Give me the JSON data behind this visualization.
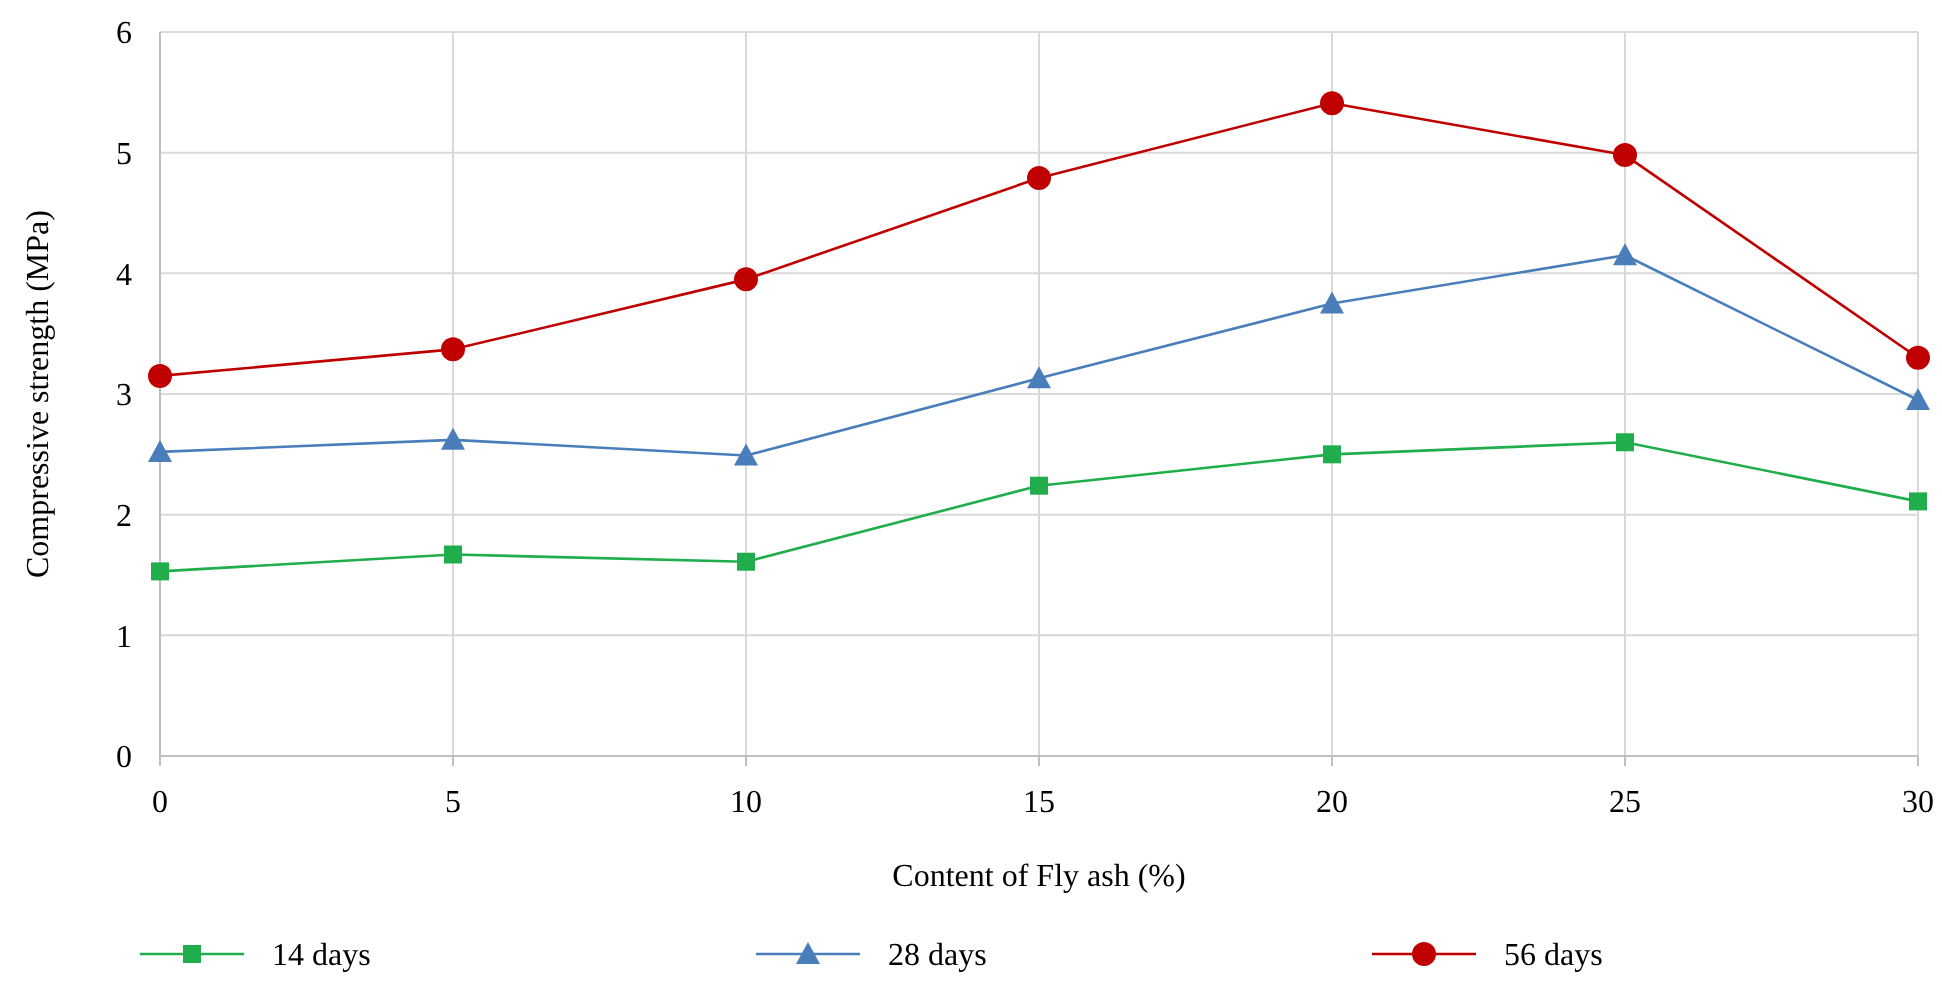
{
  "chart_data": {
    "type": "line",
    "xlabel": "Content of Fly ash (%)",
    "ylabel": "Compressive strength (MPa)",
    "x": [
      0,
      5,
      10,
      15,
      20,
      25,
      30
    ],
    "xlim": [
      0,
      30
    ],
    "xticks": [
      0,
      5,
      10,
      15,
      20,
      25,
      30
    ],
    "ylim": [
      0,
      6
    ],
    "yticks": [
      0,
      1,
      2,
      3,
      4,
      5,
      6
    ],
    "grid": true,
    "legend": "bottom",
    "series": [
      {
        "name": "14 days",
        "color": "#1fae4b",
        "marker": "square",
        "values": [
          1.53,
          1.67,
          1.61,
          2.24,
          2.5,
          2.6,
          2.11
        ]
      },
      {
        "name": "28 days",
        "color": "#4a7ebb",
        "marker": "triangle",
        "values": [
          2.52,
          2.62,
          2.49,
          3.13,
          3.75,
          4.15,
          2.95
        ]
      },
      {
        "name": "56 days",
        "color": "#c00000",
        "marker": "circle",
        "values": [
          3.15,
          3.37,
          3.95,
          4.79,
          5.41,
          4.98,
          3.3
        ]
      }
    ]
  }
}
